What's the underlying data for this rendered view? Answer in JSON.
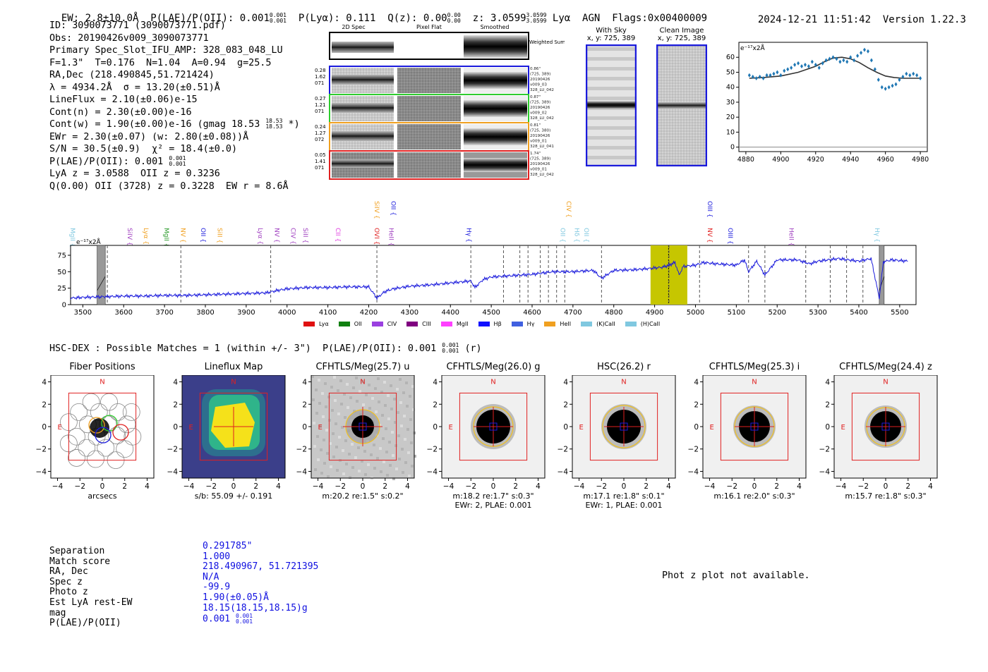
{
  "header": {
    "ew": "EW: 2.8±10.0Å",
    "plae_label": "P(LAE)/P(OII): 0.001",
    "plae_sup": "0.001",
    "plae_sub": "0.001",
    "plya": "P(Lyα): 0.111",
    "qz_label": "Q(z): 0.00",
    "qz_sup": "0.00",
    "qz_sub": "0.00",
    "z_label": "z: 3.0599",
    "z_sup": "3.0599",
    "z_sub": "3.0599",
    "line": "Lyα",
    "agn": "AGN",
    "flags": "Flags:0x00400009",
    "timestamp": "2024-12-21 11:51:42",
    "version": "Version 1.22.3"
  },
  "info": {
    "l1": "ID: 3090073771 (3090073771.pdf)",
    "l2": "Obs: 20190426v009_3090073771",
    "l3": "Primary Spec_Slot_IFU_AMP: 328_083_048_LU",
    "l4": "F=1.3\"  T=0.176  N=1.04  A=0.94  g=25.5",
    "l5": "RA,Dec (218.490845,51.721424)",
    "l6": "λ = 4934.2Å  σ = 13.20(±0.51)Å",
    "l7": "LineFlux = 2.10(±0.06)e-15",
    "l8": "Cont(n) = 2.30(±0.00)e-16",
    "l9a": "Cont(w) = 1.90(±0.00)e-16 (gmag 18.53",
    "l9sup": "18.53",
    "l9sub": "18.53",
    "l9b": "*)",
    "l10": "EWr = 2.30(±0.07) (w: 2.80(±0.08))Å",
    "l11": "S/N = 30.5(±0.9)  χ² = 18.4(±0.0)",
    "l12a": "P(LAE)/P(OII): 0.001",
    "l12sup": "0.001",
    "l12sub": "0.001",
    "l13": "LyA z = 3.0588  OII z = 0.3236",
    "l14": "Q(0.00) OII (3728) z = 0.3228  EW r = 8.6Å"
  },
  "cutouts": {
    "col_titles": [
      "2D Spec",
      "Pixel Flat",
      "Smoothed"
    ],
    "weighted_label": "Weighted Sum",
    "rows": [
      {
        "left": [
          "0.28",
          "1.62",
          "071"
        ],
        "right": [
          "0.86\"",
          "(725, 389)",
          "20190426",
          "v009_03",
          "328_LU_042"
        ],
        "color": "#1a1adc"
      },
      {
        "left": [
          "0.27",
          "1.21",
          "071"
        ],
        "right": [
          "0.87\"",
          "(725, 389)",
          "20190426",
          "v009_02",
          "328_LU_042"
        ],
        "color": "#2ecc2e"
      },
      {
        "left": [
          "0.24",
          "1.27",
          "072"
        ],
        "right": [
          "0.81\"",
          "(725, 380)",
          "20190426",
          "v009_01",
          "328_LU_041"
        ],
        "color": "#f0a020"
      },
      {
        "left": [
          "0.05",
          "1.41",
          "071"
        ],
        "right": [
          "1.74\"",
          "(725, 389)",
          "20190426",
          "v009_01",
          "328_LU_042"
        ],
        "color": "#e02020"
      }
    ]
  },
  "sky": {
    "with_sky_title": "With Sky",
    "with_sky_coord": "x, y: 725, 389",
    "clean_title": "Clean Image",
    "clean_coord": "x, y: 725, 389"
  },
  "zoom_chart": {
    "scale_label": "e⁻¹⁷x2Å"
  },
  "full_spec": {
    "scale_label": "e⁻¹⁷x2Å"
  },
  "hscdex": {
    "line": "HSC-DEX : Possible Matches = 1 (within +/- 3\")  P(LAE)/P(OII): 0.001",
    "sup": "0.001",
    "sub": "0.001",
    "tail": "(r)"
  },
  "thumbs": [
    {
      "title": "Fiber Positions",
      "cap1": "arcsecs",
      "cap2": ""
    },
    {
      "title": "Lineflux Map",
      "cap1": "s/b: 55.09 +/- 0.191",
      "cap2": ""
    },
    {
      "title": "CFHTLS/Meg(25.7) u",
      "cap1": "m:20.2  re:1.5\"  s:0.2\"",
      "cap2": ""
    },
    {
      "title": "CFHTLS/Meg(26.0) g",
      "cap1": "m:18.2  re:1.7\"  s:0.3\"",
      "cap2": "EWr: 2, PLAE: 0.001"
    },
    {
      "title": "HSC(26.2) r",
      "cap1": "m:17.1  re:1.8\"  s:0.1\"",
      "cap2": "EWr: 1, PLAE: 0.001"
    },
    {
      "title": "CFHTLS/Meg(25.3) i",
      "cap1": "m:16.1  re:2.0\"  s:0.3\"",
      "cap2": ""
    },
    {
      "title": "CFHTLS/Meg(24.4) z",
      "cap1": "m:15.7  re:1.8\"  s:0.3\"",
      "cap2": ""
    }
  ],
  "compass": {
    "north": "N",
    "east": "E"
  },
  "match": {
    "keys": [
      "Separation",
      "Match score",
      "RA, Dec",
      "Spec z",
      "Photo z",
      "Est LyA rest-EW",
      "mag",
      "P(LAE)/P(OII)"
    ],
    "vals": [
      "0.291785\"",
      "1.000",
      "218.490967, 51.721395",
      "N/A",
      "-99.9",
      "1.90(±0.05)Å",
      "18.15(18.15,18.15)g",
      "0.001"
    ],
    "plae_sup": "0.001",
    "plae_sub": "0.001"
  },
  "photz_msg": "Phot z plot not available.",
  "chart_data": [
    {
      "type": "scatter",
      "title": "Zoomed line fit",
      "xlabel": "",
      "ylabel": "",
      "xlim": [
        4876,
        4984
      ],
      "ylim": [
        -3,
        70
      ],
      "xticks": [
        4880,
        4900,
        4920,
        4940,
        4960,
        4980
      ],
      "yticks": [
        0,
        10,
        20,
        30,
        40,
        50,
        60
      ],
      "series": [
        {
          "name": "data",
          "color": "#1f77b4",
          "x": [
            4882,
            4884,
            4886,
            4888,
            4890,
            4892,
            4894,
            4896,
            4898,
            4900,
            4902,
            4904,
            4906,
            4908,
            4910,
            4912,
            4914,
            4916,
            4918,
            4920,
            4922,
            4924,
            4926,
            4928,
            4930,
            4932,
            4934,
            4936,
            4938,
            4940,
            4942,
            4944,
            4946,
            4948,
            4950,
            4952,
            4954,
            4956,
            4958,
            4960,
            4962,
            4964,
            4966,
            4968,
            4970,
            4972,
            4974,
            4976,
            4978,
            4980
          ],
          "y": [
            48,
            47,
            46,
            47,
            46,
            48,
            48,
            49,
            50,
            48,
            51,
            52,
            53,
            55,
            56,
            54,
            55,
            54,
            57,
            55,
            53,
            56,
            58,
            59,
            60,
            59,
            57,
            58,
            57,
            60,
            58,
            61,
            63,
            65,
            64,
            58,
            52,
            45,
            40,
            39,
            40,
            41,
            42,
            45,
            47,
            49,
            48,
            49,
            48,
            46
          ]
        },
        {
          "name": "fit",
          "color": "#333333",
          "x": [
            4882,
            4890,
            4900,
            4910,
            4920,
            4925,
            4930,
            4935,
            4940,
            4945,
            4950,
            4955,
            4960,
            4965,
            4970,
            4975,
            4980
          ],
          "y": [
            46,
            46.5,
            47.5,
            50,
            54,
            57,
            59.5,
            60,
            59,
            56.5,
            53,
            50,
            47.5,
            46.5,
            46,
            46,
            46
          ]
        }
      ]
    },
    {
      "type": "line",
      "title": "Full spectrum",
      "xlabel": "",
      "ylabel": "",
      "xlim": [
        3470,
        5540
      ],
      "ylim": [
        0,
        90
      ],
      "xticks": [
        3500,
        3600,
        3700,
        3800,
        3900,
        4000,
        4100,
        4200,
        4300,
        4400,
        4500,
        4600,
        4700,
        4800,
        4900,
        5000,
        5100,
        5200,
        5300,
        5400,
        5500
      ],
      "yticks": [
        0,
        25,
        50,
        75
      ],
      "series": [
        {
          "name": "spectrum",
          "color": "#1a1adc",
          "x": [
            3470,
            3500,
            3550,
            3600,
            3650,
            3700,
            3750,
            3800,
            3850,
            3900,
            3950,
            3980,
            4000,
            4050,
            4100,
            4150,
            4200,
            4220,
            4240,
            4260,
            4300,
            4350,
            4400,
            4450,
            4460,
            4480,
            4500,
            4550,
            4600,
            4650,
            4700,
            4750,
            4770,
            4800,
            4850,
            4890,
            4920,
            4935,
            4950,
            4960,
            4970,
            5000,
            5020,
            5050,
            5100,
            5120,
            5130,
            5150,
            5170,
            5200,
            5250,
            5280,
            5300,
            5350,
            5400,
            5430,
            5450,
            5460,
            5480,
            5500,
            5520
          ],
          "y": [
            10,
            11,
            12,
            13,
            13,
            14,
            14,
            15,
            16,
            17,
            18,
            22,
            24,
            26,
            26,
            27,
            27,
            10,
            20,
            24,
            28,
            30,
            33,
            36,
            26,
            38,
            42,
            44,
            46,
            50,
            50,
            52,
            40,
            52,
            53,
            55,
            57,
            60,
            64,
            45,
            58,
            60,
            64,
            62,
            60,
            68,
            50,
            66,
            45,
            68,
            68,
            62,
            66,
            70,
            66,
            70,
            10,
            65,
            68,
            67,
            66
          ]
        }
      ],
      "highlight_range": [
        4890,
        4980
      ],
      "line_marker": 4934.2,
      "emission_lines": [
        {
          "name": "MgII",
          "x": 3470,
          "color": "#80c8e0",
          "level": "low"
        },
        {
          "name": "SiIV",
          "x": 3610,
          "color": "#a040c0",
          "level": "low"
        },
        {
          "name": "Lyα",
          "x": 3650,
          "color": "#f0a020",
          "level": "low"
        },
        {
          "name": "MgII",
          "x": 3700,
          "color": "#2a9a2a",
          "level": "low"
        },
        {
          "name": "NV",
          "x": 3740,
          "color": "#f0a020",
          "level": "low"
        },
        {
          "name": "OII",
          "x": 3790,
          "color": "#1a1adc",
          "level": "low"
        },
        {
          "name": "SiII",
          "x": 3830,
          "color": "#f0a020",
          "level": "low"
        },
        {
          "name": "Lyα",
          "x": 3930,
          "color": "#a040c0",
          "level": "low"
        },
        {
          "name": "NV",
          "x": 3970,
          "color": "#a040c0",
          "level": "low"
        },
        {
          "name": "CIV",
          "x": 4010,
          "color": "#a040c0",
          "level": "low"
        },
        {
          "name": "SiII",
          "x": 4040,
          "color": "#a040c0",
          "level": "low"
        },
        {
          "name": "CII",
          "x": 4120,
          "color": "#e040e0",
          "level": "low"
        },
        {
          "name": "OVI",
          "x": 4215,
          "color": "#e02020",
          "level": "low"
        },
        {
          "name": "HeII",
          "x": 4250,
          "color": "#a040c0",
          "level": "low"
        },
        {
          "name": "SiIV",
          "x": 4215,
          "color": "#f0a020",
          "level": "high"
        },
        {
          "name": "OII",
          "x": 4255,
          "color": "#1a1adc",
          "level": "high"
        },
        {
          "name": "Hγ",
          "x": 4440,
          "color": "#1a1adc",
          "level": "low"
        },
        {
          "name": "OII",
          "x": 4670,
          "color": "#80c8e0",
          "level": "low"
        },
        {
          "name": "Hδ",
          "x": 4705,
          "color": "#80c8e0",
          "level": "low"
        },
        {
          "name": "OII",
          "x": 4728,
          "color": "#80c8e0",
          "level": "low"
        },
        {
          "name": "CIV",
          "x": 4685,
          "color": "#f0a020",
          "level": "high"
        },
        {
          "name": "OIII",
          "x": 5030,
          "color": "#1a1adc",
          "level": "high"
        },
        {
          "name": "NV",
          "x": 5030,
          "color": "#e02020",
          "level": "low"
        },
        {
          "name": "OIII",
          "x": 5080,
          "color": "#1a1adc",
          "level": "low"
        },
        {
          "name": "HeII",
          "x": 5230,
          "color": "#a040c0",
          "level": "low"
        },
        {
          "name": "Hγ",
          "x": 5440,
          "color": "#80c8e0",
          "level": "low"
        }
      ],
      "dashed_lines": [
        3560,
        3740,
        3960,
        4220,
        4450,
        4530,
        4570,
        4590,
        4620,
        4640,
        4660,
        4680,
        4770,
        4935,
        5010,
        5130,
        5170,
        5270,
        5330,
        5370,
        5410
      ],
      "legend": [
        {
          "name": "Lyα",
          "color": "#e01010"
        },
        {
          "name": "OII",
          "color": "#108010"
        },
        {
          "name": "CIV",
          "color": "#9a40e0"
        },
        {
          "name": "CIII",
          "color": "#800080"
        },
        {
          "name": "MgII",
          "color": "#ff40ff"
        },
        {
          "name": "Hβ",
          "color": "#1010ff"
        },
        {
          "name": "Hγ",
          "color": "#4060e0"
        },
        {
          "name": "HeII",
          "color": "#f0a020"
        },
        {
          "name": "(K)CaII",
          "color": "#80c8e0"
        },
        {
          "name": "(H)CaII",
          "color": "#80c8e0"
        }
      ]
    }
  ]
}
